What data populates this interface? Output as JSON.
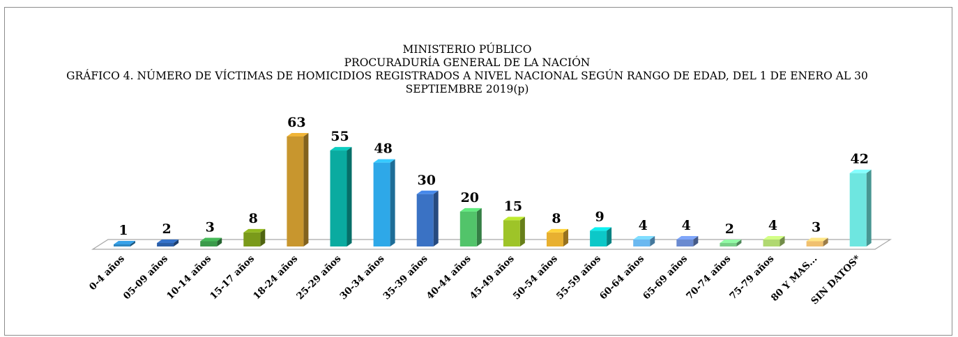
{
  "chart_data": {
    "type": "bar3d",
    "title": [
      "MINISTERIO PÚBLICO",
      "PROCURADURÍA GENERAL DE LA NACIÓN",
      "GRÁFICO 4. NÚMERO DE VÍCTIMAS DE HOMICIDIOS REGISTRADOS A NIVEL NACIONAL SEGÚN RANGO DE EDAD,  DEL 1 DE ENERO AL 30 SEPTIEMBRE 2019(p)"
    ],
    "categories": [
      "0-4 años",
      "05-09 años",
      "10-14 años",
      "15-17 años",
      "18-24 años",
      "25-29 años",
      "30-34 años",
      "35-39 años",
      "40-44 años",
      "45-49 años",
      "50-54 años",
      "55-59 años",
      "60-64 años",
      "65-69 años",
      "70-74 años",
      "75-79 años",
      "80 Y MAS...",
      "SIN DATOS*"
    ],
    "values": [
      1,
      2,
      3,
      8,
      63,
      55,
      48,
      30,
      20,
      15,
      8,
      9,
      4,
      4,
      2,
      4,
      3,
      42
    ],
    "colors": [
      "#2e86c1",
      "#2b5fa8",
      "#3a9a4a",
      "#7a9a1a",
      "#c8962e",
      "#0aaba0",
      "#2ea8e8",
      "#3a72c4",
      "#52c46a",
      "#9ec428",
      "#e8b030",
      "#0cc8c8",
      "#6ab8f0",
      "#6a8ad0",
      "#7ad08a",
      "#b0d870",
      "#f0c070",
      "#6ee6e0"
    ]
  }
}
